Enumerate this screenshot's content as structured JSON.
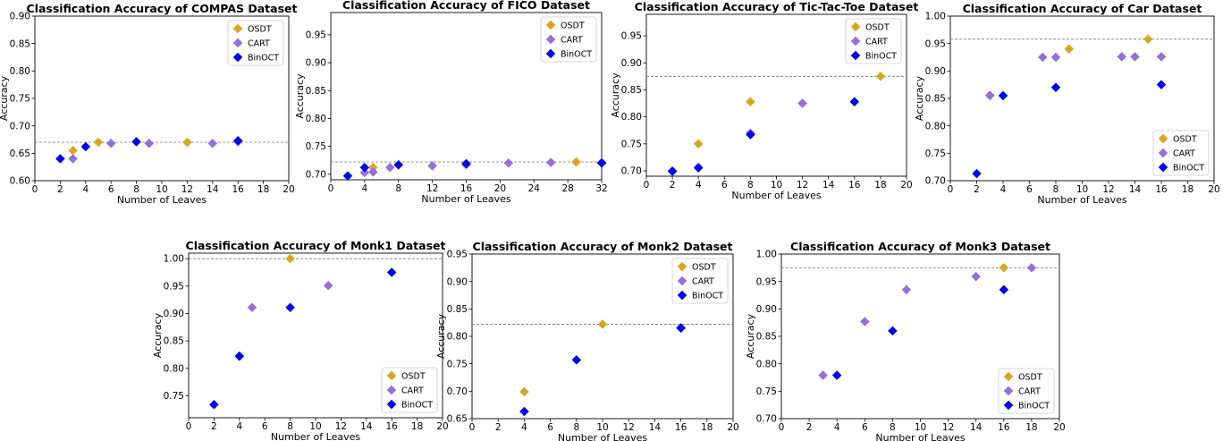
{
  "legend_labels": [
    "OSDT",
    "CART",
    "BinOCT"
  ],
  "series_colors": {
    "OSDT": "#DAA520",
    "CART": "#9370DB",
    "BinOCT": "#0000EE"
  },
  "chart_data": [
    {
      "type": "scatter",
      "title": "Classification Accuracy of COMPAS Dataset",
      "xlabel": "Number of Leaves",
      "ylabel": "Accuracy",
      "xlim": [
        0,
        20
      ],
      "ylim": [
        0.6,
        0.9
      ],
      "xticks": [
        0,
        2,
        4,
        6,
        8,
        10,
        12,
        14,
        16,
        18,
        20
      ],
      "yticks": [
        0.6,
        0.65,
        0.7,
        0.75,
        0.8,
        0.85,
        0.9
      ],
      "yfmt": 2,
      "ref_line": 0.67,
      "legend": "top-right",
      "series": [
        {
          "name": "OSDT",
          "x": [
            3,
            5,
            8,
            12,
            16
          ],
          "y": [
            0.655,
            0.67,
            0.671,
            0.67,
            0.672
          ]
        },
        {
          "name": "CART",
          "x": [
            3,
            6,
            9,
            14,
            16
          ],
          "y": [
            0.64,
            0.668,
            0.668,
            0.668,
            0.671
          ]
        },
        {
          "name": "BinOCT",
          "x": [
            2,
            4,
            8,
            16
          ],
          "y": [
            0.64,
            0.662,
            0.671,
            0.673
          ]
        }
      ]
    },
    {
      "type": "scatter",
      "title": "Classification Accuracy of FICO Dataset",
      "xlabel": "Number of Leaves",
      "ylabel": "Accuracy",
      "xlim": [
        0,
        32
      ],
      "ylim": [
        0.69,
        0.99
      ],
      "xticks": [
        0,
        4,
        8,
        12,
        16,
        20,
        24,
        28,
        32
      ],
      "yticks": [
        0.7,
        0.75,
        0.8,
        0.85,
        0.9,
        0.95
      ],
      "yfmt": 2,
      "ref_line": 0.722,
      "legend": "top-right",
      "series": [
        {
          "name": "OSDT",
          "x": [
            5,
            8,
            16,
            29,
            32
          ],
          "y": [
            0.712,
            0.716,
            0.719,
            0.722,
            0.721
          ]
        },
        {
          "name": "CART",
          "x": [
            4,
            5,
            7,
            12,
            16,
            21,
            26,
            32
          ],
          "y": [
            0.703,
            0.704,
            0.712,
            0.715,
            0.717,
            0.72,
            0.721,
            0.721
          ]
        },
        {
          "name": "BinOCT",
          "x": [
            2,
            4,
            8,
            16,
            32
          ],
          "y": [
            0.697,
            0.712,
            0.717,
            0.719,
            0.72
          ]
        }
      ]
    },
    {
      "type": "scatter",
      "title": "Classification Accuracy of Tic-Tac-Toe Dataset",
      "xlabel": "Number of Leaves",
      "ylabel": "Accuracy",
      "xlim": [
        0,
        20
      ],
      "ylim": [
        0.69,
        0.99
      ],
      "xticks": [
        0,
        2,
        4,
        6,
        8,
        10,
        12,
        14,
        16,
        18,
        20
      ],
      "yticks": [
        0.7,
        0.75,
        0.8,
        0.85,
        0.9,
        0.95
      ],
      "yfmt": 2,
      "ref_line": 0.875,
      "legend": "top-right",
      "series": [
        {
          "name": "OSDT",
          "x": [
            2,
            4,
            8,
            12,
            16,
            18
          ],
          "y": [
            0.7,
            0.75,
            0.828,
            0.825,
            0.828,
            0.875
          ]
        },
        {
          "name": "CART",
          "x": [
            2,
            4,
            8,
            12,
            16
          ],
          "y": [
            0.7,
            0.705,
            0.77,
            0.825,
            0.828
          ]
        },
        {
          "name": "BinOCT",
          "x": [
            2,
            4,
            8,
            16
          ],
          "y": [
            0.699,
            0.706,
            0.767,
            0.828
          ]
        }
      ]
    },
    {
      "type": "scatter",
      "title": "Classification Accuracy of Car Dataset",
      "xlabel": "Number of Leaves",
      "ylabel": "Accuracy",
      "xlim": [
        0,
        20
      ],
      "ylim": [
        0.7,
        1.0
      ],
      "xticks": [
        0,
        2,
        4,
        6,
        8,
        10,
        12,
        14,
        16,
        18,
        20
      ],
      "yticks": [
        0.7,
        0.75,
        0.8,
        0.85,
        0.9,
        0.95,
        1.0
      ],
      "yfmt": 2,
      "ref_line": 0.958,
      "legend": "bottom-right",
      "series": [
        {
          "name": "OSDT",
          "x": [
            3,
            9,
            15
          ],
          "y": [
            0.856,
            0.94,
            0.958
          ]
        },
        {
          "name": "CART",
          "x": [
            3,
            7,
            8,
            13,
            14,
            16
          ],
          "y": [
            0.855,
            0.925,
            0.925,
            0.926,
            0.926,
            0.926
          ]
        },
        {
          "name": "BinOCT",
          "x": [
            2,
            4,
            8,
            16
          ],
          "y": [
            0.713,
            0.855,
            0.87,
            0.875
          ]
        }
      ]
    },
    {
      "type": "scatter",
      "title": "Classification Accuracy of Monk1 Dataset",
      "xlabel": "Number of Leaves",
      "ylabel": "Accuracy",
      "xlim": [
        0,
        20
      ],
      "ylim": [
        0.71,
        1.01
      ],
      "xticks": [
        0,
        2,
        4,
        6,
        8,
        10,
        12,
        14,
        16,
        18,
        20
      ],
      "yticks": [
        0.75,
        0.8,
        0.85,
        0.9,
        0.95,
        1.0
      ],
      "yfmt": 2,
      "ref_line": 1.0,
      "legend": "bottom-right",
      "series": [
        {
          "name": "OSDT",
          "x": [
            8
          ],
          "y": [
            1.0
          ]
        },
        {
          "name": "CART",
          "x": [
            4,
            5,
            11
          ],
          "y": [
            0.823,
            0.911,
            0.951
          ]
        },
        {
          "name": "BinOCT",
          "x": [
            2,
            4,
            8,
            16
          ],
          "y": [
            0.734,
            0.822,
            0.911,
            0.975
          ]
        }
      ]
    },
    {
      "type": "scatter",
      "title": "Classification Accuracy of Monk2 Dataset",
      "xlabel": "Number of Leaves",
      "ylabel": "Accuracy",
      "xlim": [
        0,
        20
      ],
      "ylim": [
        0.65,
        0.95
      ],
      "xticks": [
        0,
        2,
        4,
        6,
        8,
        10,
        12,
        14,
        16,
        18,
        20
      ],
      "yticks": [
        0.65,
        0.7,
        0.75,
        0.8,
        0.85,
        0.9,
        0.95
      ],
      "yfmt": 2,
      "ref_line": 0.822,
      "legend": "top-right",
      "series": [
        {
          "name": "OSDT",
          "x": [
            4,
            10
          ],
          "y": [
            0.699,
            0.822
          ]
        },
        {
          "name": "CART",
          "x": [
            16
          ],
          "y": [
            0.816
          ]
        },
        {
          "name": "BinOCT",
          "x": [
            4,
            8,
            16
          ],
          "y": [
            0.663,
            0.757,
            0.815
          ]
        }
      ]
    },
    {
      "type": "scatter",
      "title": "Classification Accuracy of Monk3 Dataset",
      "xlabel": "Number of Leaves",
      "ylabel": "Accuracy",
      "xlim": [
        0,
        20
      ],
      "ylim": [
        0.7,
        1.0
      ],
      "xticks": [
        0,
        2,
        4,
        6,
        8,
        10,
        12,
        14,
        16,
        18,
        20
      ],
      "yticks": [
        0.7,
        0.75,
        0.8,
        0.85,
        0.9,
        0.95,
        1.0
      ],
      "yfmt": 2,
      "ref_line": 0.975,
      "legend": "bottom-right",
      "series": [
        {
          "name": "OSDT",
          "x": [
            16
          ],
          "y": [
            0.975
          ]
        },
        {
          "name": "CART",
          "x": [
            3,
            6,
            9,
            14,
            18
          ],
          "y": [
            0.779,
            0.877,
            0.935,
            0.959,
            0.975
          ]
        },
        {
          "name": "BinOCT",
          "x": [
            4,
            8,
            16
          ],
          "y": [
            0.779,
            0.86,
            0.935
          ]
        }
      ]
    }
  ]
}
